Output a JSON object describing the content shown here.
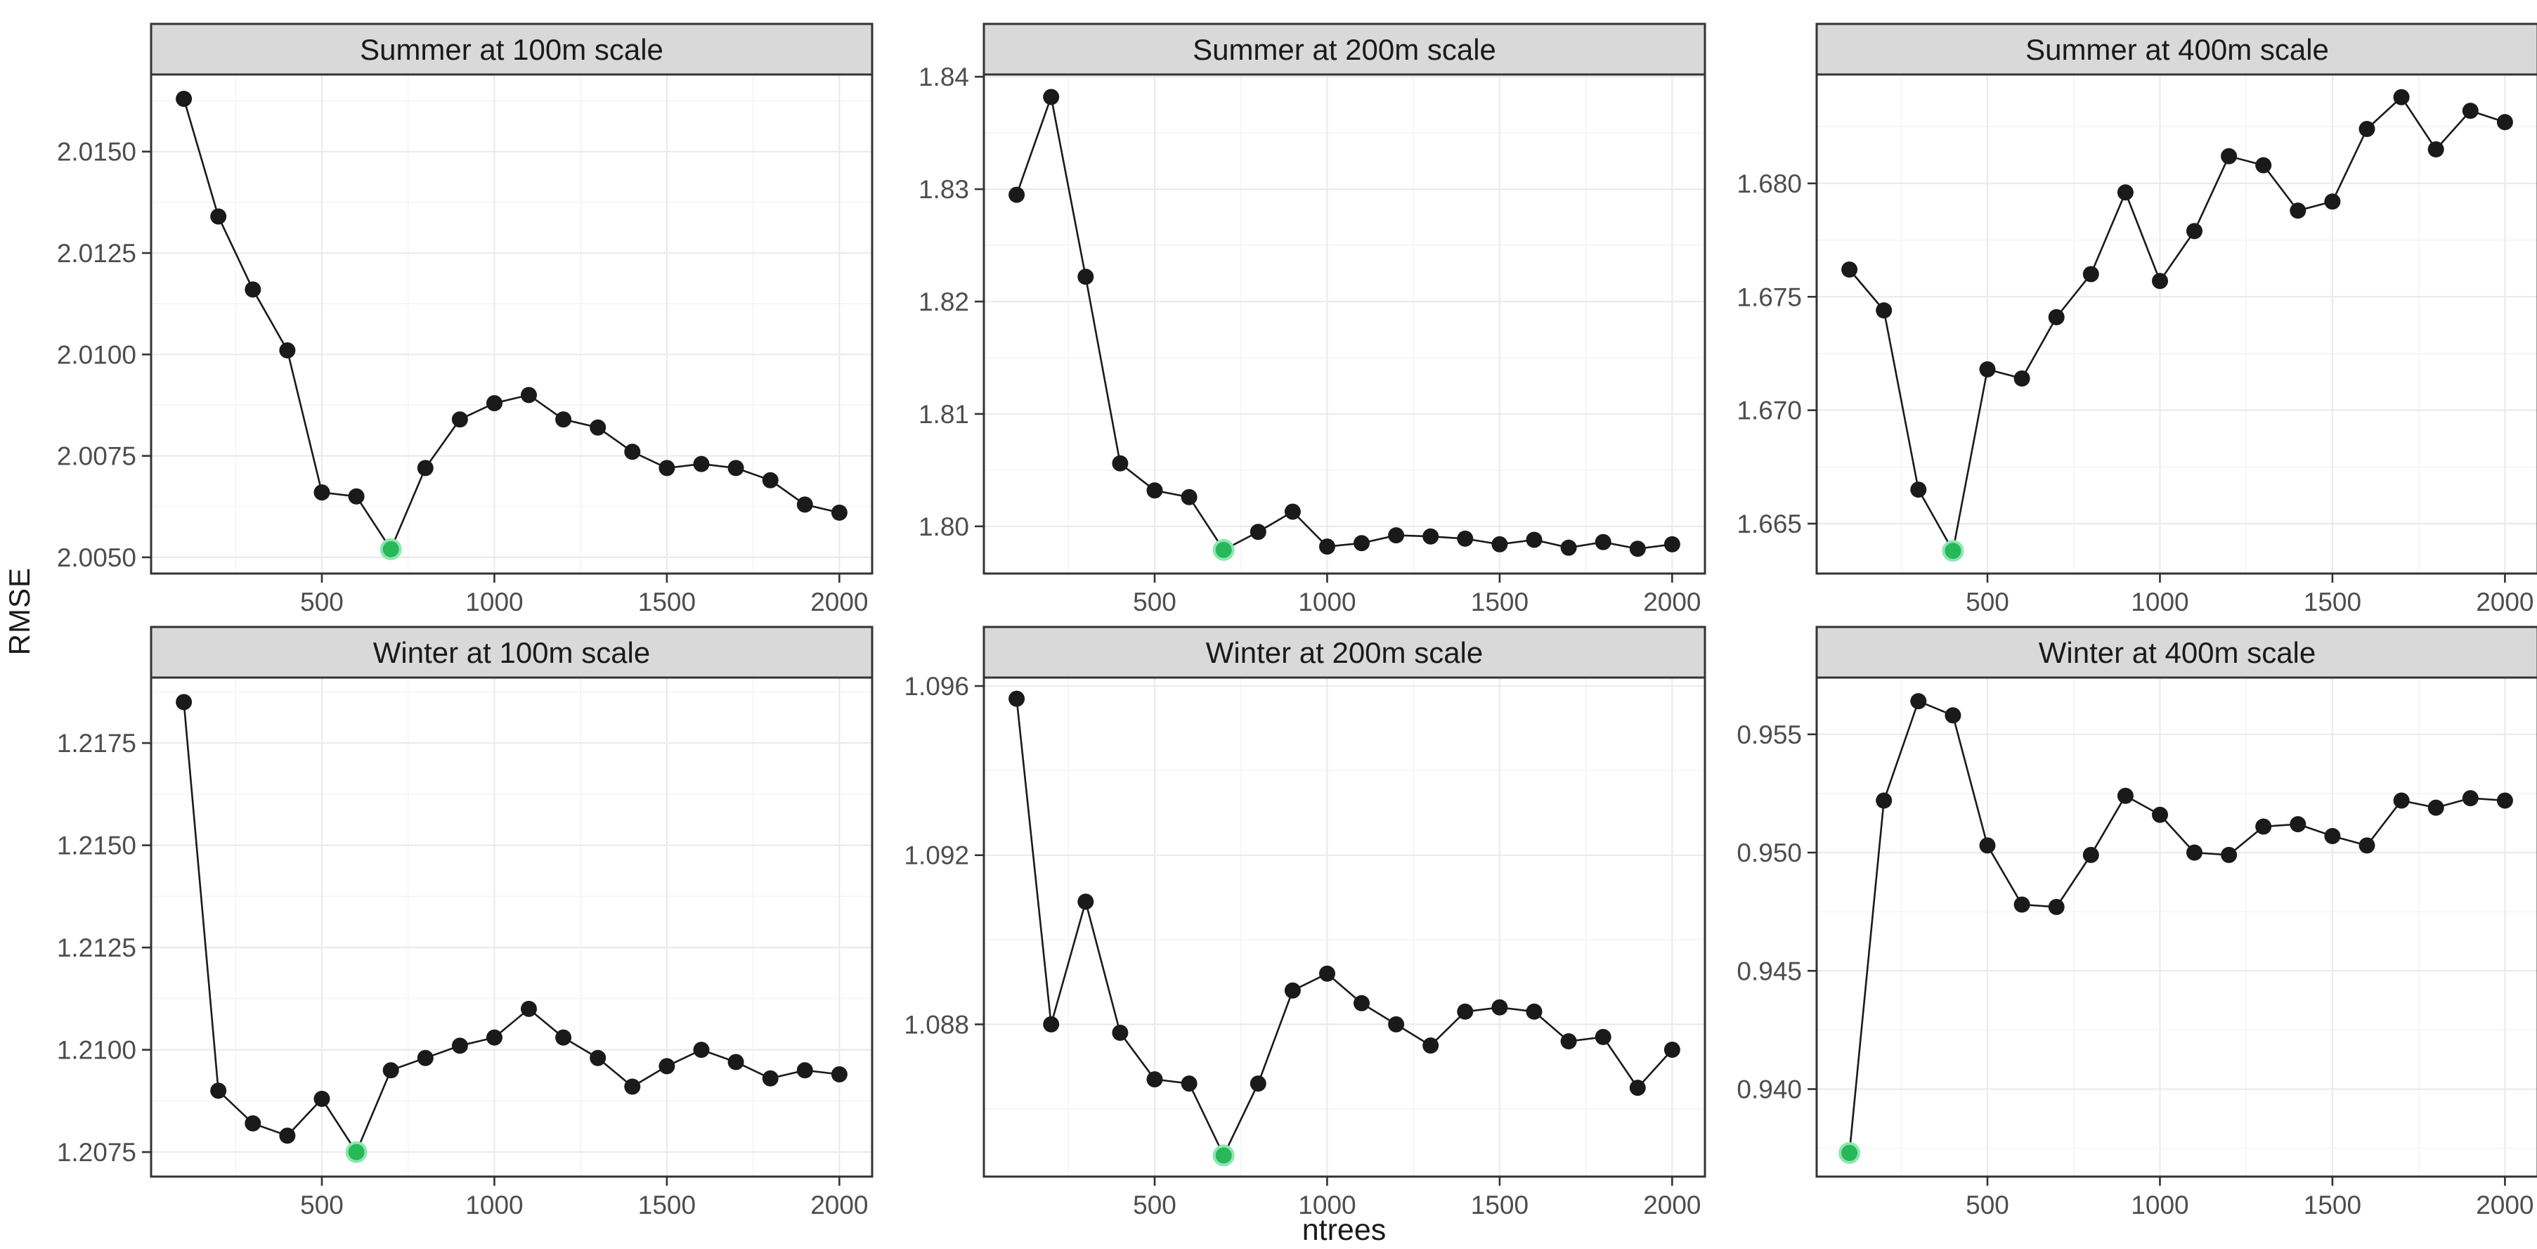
{
  "figure": {
    "y_axis_title": "RMSE",
    "x_axis_title": "ntrees"
  },
  "colors": {
    "point": "#1A1A1A",
    "line": "#1A1A1A",
    "highlight": "#27B859",
    "highlight_halo": "#8FE6B0",
    "strip_bg": "#D9D9D9",
    "strip_border": "#333333",
    "panel_border": "#333333",
    "panel_bg": "#FFFFFF",
    "grid_major": "#EBEBEB",
    "grid_minor": "#F4F4F4",
    "tick_mark": "#333333",
    "tick_text": "#4D4D4D",
    "strip_text": "#1A1A1A"
  },
  "chart_data": [
    {
      "type": "line",
      "title": "Summer at 100m scale",
      "xlabel": "ntrees",
      "ylabel": "RMSE",
      "x": [
        100,
        200,
        300,
        400,
        500,
        600,
        700,
        800,
        900,
        1000,
        1100,
        1200,
        1300,
        1400,
        1500,
        1600,
        1700,
        1800,
        1900,
        2000
      ],
      "y": [
        2.0163,
        2.0134,
        2.0116,
        2.0101,
        2.0066,
        2.0065,
        2.0052,
        2.0072,
        2.0084,
        2.0088,
        2.009,
        2.0084,
        2.0082,
        2.0076,
        2.0072,
        2.0073,
        2.0072,
        2.0069,
        2.0063,
        2.0061
      ],
      "highlight": {
        "x": 700,
        "y": 2.0052
      },
      "xlim": [
        5,
        2095
      ],
      "ylim": [
        2.0046,
        2.0169
      ],
      "xticks": [
        500,
        1000,
        1500,
        2000
      ],
      "yticks": [
        2.005,
        2.0075,
        2.01,
        2.0125,
        2.015
      ],
      "tick_decimals": 4,
      "grid": true,
      "legend": "none"
    },
    {
      "type": "line",
      "title": "Summer at 200m scale",
      "xlabel": "ntrees",
      "ylabel": "RMSE",
      "x": [
        100,
        200,
        300,
        400,
        500,
        600,
        700,
        800,
        900,
        1000,
        1100,
        1200,
        1300,
        1400,
        1500,
        1600,
        1700,
        1800,
        1900,
        2000
      ],
      "y": [
        1.8295,
        1.8382,
        1.8222,
        1.8056,
        1.8032,
        1.8026,
        1.7979,
        1.7995,
        1.8013,
        1.7982,
        1.7985,
        1.7992,
        1.7991,
        1.7989,
        1.7984,
        1.7988,
        1.7981,
        1.7986,
        1.798,
        1.7984
      ],
      "highlight": {
        "x": 700,
        "y": 1.7979
      },
      "xlim": [
        5,
        2095
      ],
      "ylim": [
        1.7958,
        1.8402
      ],
      "xticks": [
        500,
        1000,
        1500,
        2000
      ],
      "yticks": [
        1.8,
        1.81,
        1.82,
        1.83,
        1.84
      ],
      "tick_decimals": 2,
      "grid": true,
      "legend": "none"
    },
    {
      "type": "line",
      "title": "Summer at 400m scale",
      "xlabel": "ntrees",
      "ylabel": "RMSE",
      "x": [
        100,
        200,
        300,
        400,
        500,
        600,
        700,
        800,
        900,
        1000,
        1100,
        1200,
        1300,
        1400,
        1500,
        1600,
        1700,
        1800,
        1900,
        2000
      ],
      "y": [
        1.6762,
        1.6744,
        1.6665,
        1.6638,
        1.6718,
        1.6714,
        1.6741,
        1.676,
        1.6796,
        1.6757,
        1.6779,
        1.6812,
        1.6808,
        1.6788,
        1.6792,
        1.6824,
        1.6838,
        1.6815,
        1.6832,
        1.6827
      ],
      "highlight": {
        "x": 400,
        "y": 1.6638
      },
      "xlim": [
        5,
        2095
      ],
      "ylim": [
        1.6628,
        1.6848
      ],
      "xticks": [
        500,
        1000,
        1500,
        2000
      ],
      "yticks": [
        1.665,
        1.67,
        1.675,
        1.68
      ],
      "tick_decimals": 3,
      "grid": true,
      "legend": "none"
    },
    {
      "type": "line",
      "title": "Winter at 100m scale",
      "xlabel": "ntrees",
      "ylabel": "RMSE",
      "x": [
        100,
        200,
        300,
        400,
        500,
        600,
        700,
        800,
        900,
        1000,
        1100,
        1200,
        1300,
        1400,
        1500,
        1600,
        1700,
        1800,
        1900,
        2000
      ],
      "y": [
        1.2185,
        1.209,
        1.2082,
        1.2079,
        1.2088,
        1.2075,
        1.2095,
        1.2098,
        1.2101,
        1.2103,
        1.211,
        1.2103,
        1.2098,
        1.2091,
        1.2096,
        1.21,
        1.2097,
        1.2093,
        1.2095,
        1.2094
      ],
      "highlight": {
        "x": 600,
        "y": 1.2075
      },
      "xlim": [
        5,
        2095
      ],
      "ylim": [
        1.2069,
        1.2191
      ],
      "xticks": [
        500,
        1000,
        1500,
        2000
      ],
      "yticks": [
        1.2075,
        1.21,
        1.2125,
        1.215,
        1.2175
      ],
      "tick_decimals": 4,
      "grid": true,
      "legend": "none"
    },
    {
      "type": "line",
      "title": "Winter at 200m scale",
      "xlabel": "ntrees",
      "ylabel": "RMSE",
      "x": [
        100,
        200,
        300,
        400,
        500,
        600,
        700,
        800,
        900,
        1000,
        1100,
        1200,
        1300,
        1400,
        1500,
        1600,
        1700,
        1800,
        1900,
        2000
      ],
      "y": [
        1.0957,
        1.088,
        1.0909,
        1.0878,
        1.0867,
        1.0866,
        1.0849,
        1.0866,
        1.0888,
        1.0892,
        1.0885,
        1.088,
        1.0875,
        1.0883,
        1.0884,
        1.0883,
        1.0876,
        1.0877,
        1.0865,
        1.0874
      ],
      "highlight": {
        "x": 700,
        "y": 1.0849
      },
      "xlim": [
        5,
        2095
      ],
      "ylim": [
        1.0844,
        1.0962
      ],
      "xticks": [
        500,
        1000,
        1500,
        2000
      ],
      "yticks": [
        1.088,
        1.092,
        1.096
      ],
      "tick_decimals": 3,
      "grid": true,
      "legend": "none"
    },
    {
      "type": "line",
      "title": "Winter at 400m scale",
      "xlabel": "ntrees",
      "ylabel": "RMSE",
      "x": [
        100,
        200,
        300,
        400,
        500,
        600,
        700,
        800,
        900,
        1000,
        1100,
        1200,
        1300,
        1400,
        1500,
        1600,
        1700,
        1800,
        1900,
        2000
      ],
      "y": [
        0.9373,
        0.9522,
        0.9564,
        0.9558,
        0.9503,
        0.9478,
        0.9477,
        0.9499,
        0.9524,
        0.9516,
        0.95,
        0.9499,
        0.9511,
        0.9512,
        0.9507,
        0.9503,
        0.9522,
        0.9519,
        0.9523,
        0.9522
      ],
      "highlight": {
        "x": 100,
        "y": 0.9373
      },
      "xlim": [
        5,
        2095
      ],
      "ylim": [
        0.9363,
        0.9574
      ],
      "xticks": [
        500,
        1000,
        1500,
        2000
      ],
      "yticks": [
        0.94,
        0.945,
        0.95,
        0.955
      ],
      "tick_decimals": 3,
      "grid": true,
      "legend": "none"
    }
  ]
}
